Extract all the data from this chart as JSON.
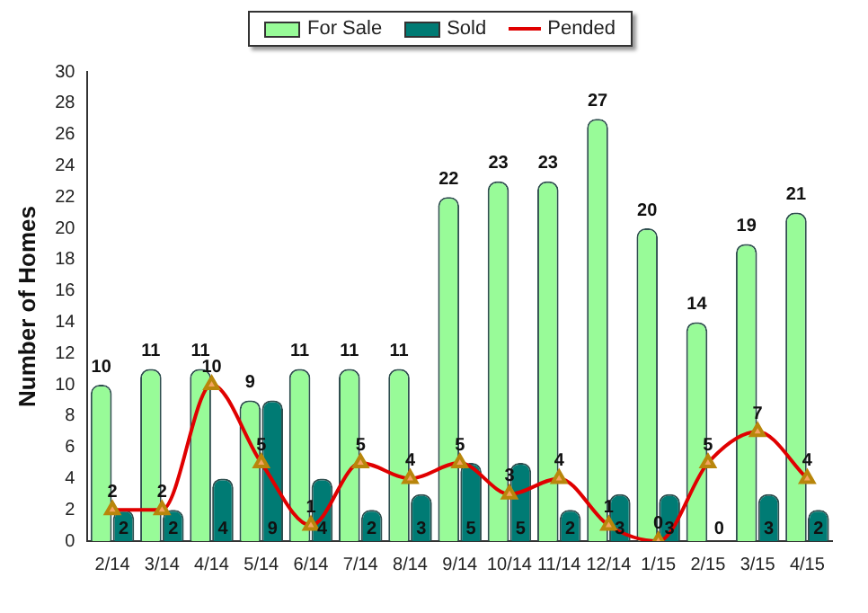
{
  "chart_data": {
    "type": "bar",
    "ylabel": "Number of Homes",
    "categories": [
      "2/14",
      "3/14",
      "4/14",
      "5/14",
      "6/14",
      "7/14",
      "8/14",
      "9/14",
      "10/14",
      "11/14",
      "12/14",
      "1/15",
      "2/15",
      "3/15",
      "4/15"
    ],
    "series": [
      {
        "name": "For Sale",
        "color": "#98fb98",
        "values": [
          10,
          11,
          11,
          9,
          11,
          11,
          11,
          22,
          23,
          23,
          27,
          20,
          14,
          19,
          21
        ]
      },
      {
        "name": "Sold",
        "color": "#007b74",
        "values": [
          2,
          2,
          4,
          9,
          4,
          2,
          3,
          5,
          5,
          2,
          3,
          3,
          0,
          3,
          2
        ]
      },
      {
        "name": "Pended",
        "type": "line",
        "color": "#e00000",
        "marker": "triangle",
        "values": [
          2,
          2,
          10,
          5,
          1,
          5,
          4,
          5,
          3,
          4,
          1,
          0,
          5,
          7,
          4
        ]
      }
    ],
    "ylim": [
      0,
      30
    ],
    "yticks": [
      0,
      2,
      4,
      6,
      8,
      10,
      12,
      14,
      16,
      18,
      20,
      22,
      24,
      26,
      28,
      30
    ],
    "grid": false,
    "legend": "top",
    "data_labels": true
  }
}
